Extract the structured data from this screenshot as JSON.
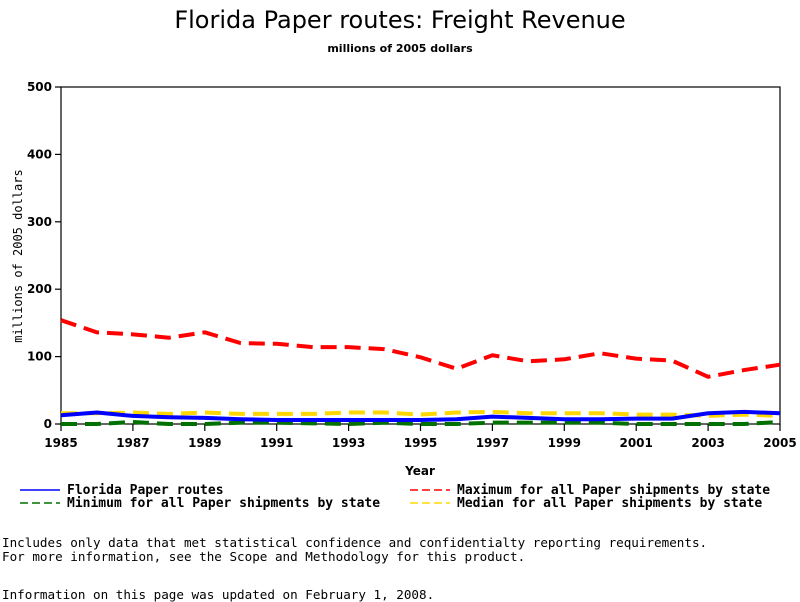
{
  "chart_data": {
    "type": "line",
    "title": "Florida Paper routes: Freight Revenue",
    "subtitle": "millions of 2005 dollars",
    "xlabel": "Year",
    "ylabel": "millions of 2005 dollars",
    "xlim": [
      1985,
      2005
    ],
    "ylim": [
      0,
      500
    ],
    "x_ticks": [
      "1985",
      "1987",
      "1989",
      "1991",
      "1993",
      "1995",
      "1997",
      "1999",
      "2001",
      "2003",
      "2005"
    ],
    "y_ticks": [
      "0",
      "100",
      "200",
      "300",
      "400",
      "500"
    ],
    "grid": false,
    "legend_position": "bottom",
    "x": [
      1985,
      1986,
      1987,
      1988,
      1989,
      1990,
      1991,
      1992,
      1993,
      1994,
      1995,
      1996,
      1997,
      1998,
      1999,
      2000,
      2001,
      2002,
      2003,
      2004,
      2005
    ],
    "series": [
      {
        "name": "Florida Paper routes",
        "color": "#0000ff",
        "style": "solid",
        "values": [
          13,
          17,
          12,
          10,
          9,
          7,
          6,
          6,
          6,
          6,
          6,
          7,
          11,
          9,
          7,
          7,
          8,
          8,
          16,
          18,
          16
        ]
      },
      {
        "name": "Maximum for all Paper shipments by state",
        "color": "#ff0000",
        "style": "dashed",
        "values": [
          154,
          136,
          133,
          128,
          136,
          120,
          119,
          114,
          114,
          111,
          99,
          82,
          102,
          93,
          96,
          105,
          97,
          94,
          70,
          80,
          88
        ]
      },
      {
        "name": "Minimum for all Paper shipments by state",
        "color": "#007000",
        "style": "dashed",
        "values": [
          0,
          0,
          3,
          0,
          0,
          2,
          2,
          1,
          0,
          2,
          0,
          0,
          2,
          2,
          2,
          2,
          0,
          0,
          0,
          0,
          3
        ]
      },
      {
        "name": "Median for all Paper shipments by state",
        "color": "#ffd700",
        "style": "dashed",
        "values": [
          16,
          16,
          17,
          15,
          17,
          15,
          15,
          15,
          17,
          17,
          14,
          17,
          18,
          16,
          16,
          16,
          14,
          14,
          12,
          14,
          12
        ]
      }
    ]
  },
  "notes": {
    "line1": "Includes only data that met statistical confidence and confidentialty reporting requirements.",
    "line2": "For more information, see the Scope and Methodology for this product.",
    "updated": "Information on this page was updated on February 1, 2008."
  }
}
